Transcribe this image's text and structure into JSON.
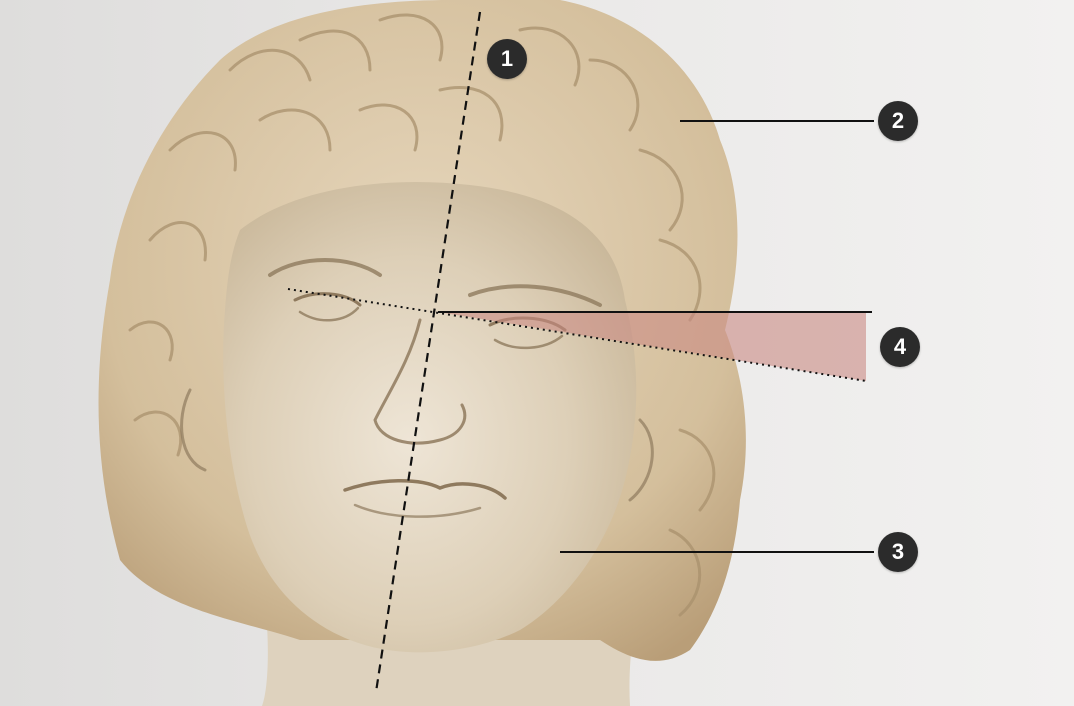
{
  "markers": [
    {
      "id": "1",
      "label": "1"
    },
    {
      "id": "2",
      "label": "2"
    },
    {
      "id": "3",
      "label": "3"
    },
    {
      "id": "4",
      "label": "4"
    }
  ],
  "colors": {
    "background": "#e6e5e4",
    "marble": "#ddd0b8",
    "marker_fill": "#2b2b2b",
    "marker_text": "#ffffff",
    "angle_highlight": "#c98b84"
  }
}
